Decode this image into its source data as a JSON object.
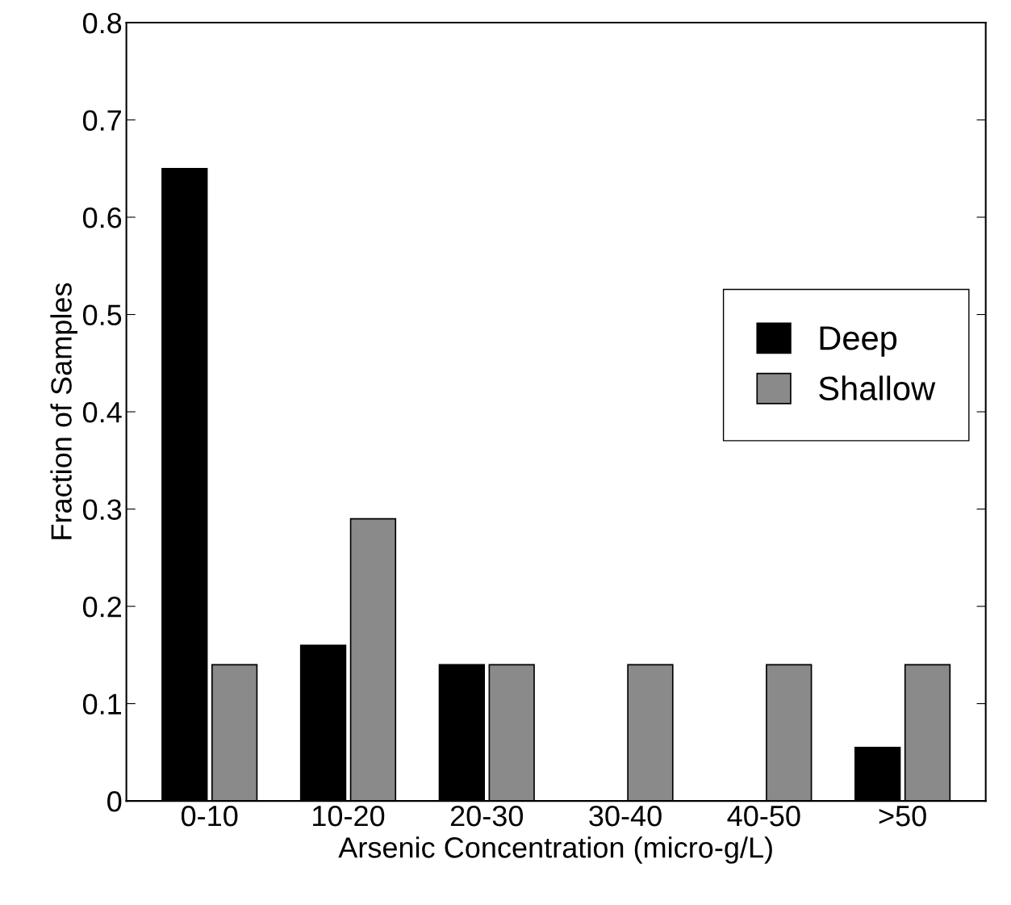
{
  "chart_data": {
    "type": "bar",
    "xlabel": "Arsenic Concentration (micro-g/L)",
    "ylabel": "Fraction of Samples",
    "categories": [
      "0-10",
      "10-20",
      "20-30",
      "30-40",
      "40-50",
      ">50"
    ],
    "series": [
      {
        "name": "Deep",
        "color": "#000000",
        "values": [
          0.65,
          0.16,
          0.14,
          0,
          0,
          0.055
        ]
      },
      {
        "name": "Shallow",
        "color": "#8a8a8a",
        "values": [
          0.14,
          0.29,
          0.14,
          0.14,
          0.14,
          0.14
        ]
      }
    ],
    "ylim": [
      0,
      0.8
    ],
    "yticks": [
      0,
      0.1,
      0.2,
      0.3,
      0.4,
      0.5,
      0.6,
      0.7,
      0.8
    ],
    "grid": false,
    "legend": "right"
  }
}
